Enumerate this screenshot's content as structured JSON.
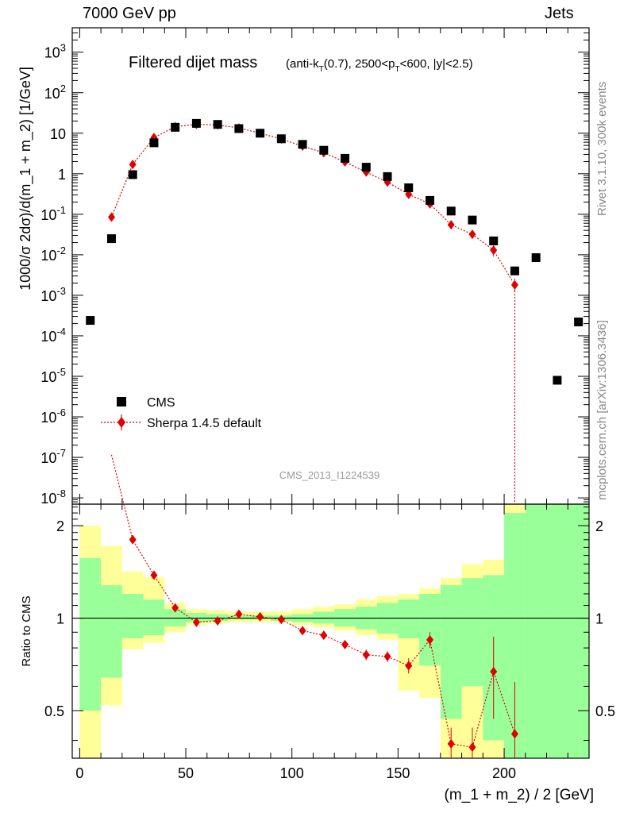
{
  "header": {
    "beam": "7000 GeV pp",
    "process": "Jets"
  },
  "side_labels": {
    "rivet": "Rivet 3.1.10,  300k events",
    "mcplots": "mcplots.cern.ch [arXiv:1306.3436]"
  },
  "colors": {
    "cms": "#000000",
    "sherpa": "#e00000",
    "band_stat": "#99ff99",
    "band_total": "#ffff99",
    "watermark": "#999999"
  },
  "chart_data": [
    {
      "type": "scatter",
      "panel": "main",
      "title": "Filtered dijet mass",
      "title_detail": {
        "prefix": "(anti-k",
        "k_sub": "T",
        "mid": "(0.7), 2500<p",
        "p_sub": "T",
        "suffix": "<600, |y|<2.5)"
      },
      "ylabel": "1000/σ 2dσ)/d(m_1 + m_2) [1/GeV]",
      "yscale": "log",
      "ylim": [
        7e-09,
        4000
      ],
      "xlim": [
        -3.5,
        240
      ],
      "y_ticks": [
        {
          "base": "10",
          "exp": "-8",
          "value": 1e-08
        },
        {
          "base": "10",
          "exp": "-7",
          "value": 1e-07
        },
        {
          "base": "10",
          "exp": "-6",
          "value": 1e-06
        },
        {
          "base": "10",
          "exp": "-5",
          "value": 1e-05
        },
        {
          "base": "10",
          "exp": "-4",
          "value": 0.0001
        },
        {
          "base": "10",
          "exp": "-3",
          "value": 0.001
        },
        {
          "base": "10",
          "exp": "-2",
          "value": 0.01
        },
        {
          "base": "10",
          "exp": "-1",
          "value": 0.1
        },
        {
          "base": "1",
          "exp": "",
          "value": 1
        },
        {
          "base": "10",
          "exp": "",
          "value": 10
        },
        {
          "base": "10",
          "exp": "2",
          "value": 100
        },
        {
          "base": "10",
          "exp": "3",
          "value": 1000
        }
      ],
      "watermark": "CMS_2013_I1224539",
      "legend": [
        {
          "label": "CMS",
          "marker": "square"
        },
        {
          "label": "Sherpa 1.4.5 default",
          "marker": "diamond"
        }
      ],
      "series": [
        {
          "name": "CMS",
          "x": [
            5,
            15,
            25,
            35,
            45,
            55,
            65,
            75,
            85,
            95,
            105,
            115,
            125,
            135,
            145,
            155,
            165,
            175,
            185,
            195,
            205,
            215,
            225,
            235
          ],
          "y": [
            0.00024,
            0.025,
            0.95,
            5.8,
            14,
            17.5,
            16.5,
            13,
            10,
            7.3,
            5.3,
            3.8,
            2.4,
            1.45,
            0.85,
            0.45,
            0.22,
            0.12,
            0.072,
            0.022,
            0.004,
            0.0085,
            8e-06,
            0.00022
          ]
        },
        {
          "name": "Sherpa 1.4.5 default",
          "x": [
            15,
            25,
            35,
            45,
            55,
            65,
            75,
            85,
            95,
            105,
            115,
            125,
            135,
            145,
            155,
            165,
            175,
            185,
            195,
            205
          ],
          "y": [
            0.085,
            1.7,
            7.8,
            14.5,
            16.5,
            16,
            13.5,
            10,
            7.2,
            4.8,
            3.3,
            1.95,
            1.1,
            0.62,
            0.31,
            0.18,
            0.055,
            0.032,
            0.013,
            0.0018
          ],
          "yerr_low": [
            0.075,
            1.6,
            7.5,
            14.2,
            16.2,
            15.7,
            13.2,
            9.8,
            7.0,
            4.6,
            3.2,
            1.85,
            1.03,
            0.56,
            0.27,
            0.15,
            0.045,
            0.025,
            0.009,
            0.0012
          ],
          "yerr_high": [
            0.095,
            1.8,
            8.1,
            14.8,
            16.8,
            16.3,
            13.8,
            10.2,
            7.4,
            5.0,
            3.4,
            2.05,
            1.17,
            0.68,
            0.35,
            0.21,
            0.065,
            0.039,
            0.018,
            0.0026
          ]
        }
      ]
    },
    {
      "type": "line",
      "panel": "ratio",
      "ylabel": "Ratio to CMS",
      "xlabel": "(m_1 + m_2) / 2 [GeV]",
      "ylim": [
        0.35,
        2.35
      ],
      "xlim": [
        -3.5,
        240
      ],
      "x_ticks": [
        "0",
        "50",
        "100",
        "150",
        "200"
      ],
      "x_tick_values": [
        0,
        50,
        100,
        150,
        200
      ],
      "y_ticks": [
        "0.5",
        "1",
        "2"
      ],
      "y_tick_values": [
        0.5,
        1,
        2
      ],
      "reference": 1,
      "bins": [
        0,
        10,
        20,
        30,
        40,
        50,
        60,
        70,
        80,
        90,
        100,
        110,
        120,
        130,
        140,
        150,
        160,
        170,
        180,
        190,
        200,
        210,
        220,
        230,
        240
      ],
      "band_total": {
        "low": [
          0.35,
          0.52,
          0.79,
          0.83,
          0.9,
          0.95,
          0.96,
          0.97,
          0.97,
          0.97,
          0.95,
          0.93,
          0.91,
          0.88,
          0.85,
          0.58,
          0.55,
          0.35,
          0.35,
          0.35,
          0.35,
          0.35,
          0.35,
          0.35
        ],
        "high": [
          2.0,
          1.72,
          1.42,
          1.36,
          1.12,
          1.07,
          1.06,
          1.05,
          1.05,
          1.05,
          1.07,
          1.09,
          1.11,
          1.15,
          1.18,
          1.2,
          1.25,
          1.35,
          1.5,
          1.55,
          2.35,
          2.35,
          1.7,
          2.35
        ]
      },
      "band_stat": {
        "low": [
          0.5,
          0.64,
          0.86,
          0.88,
          0.94,
          0.97,
          0.98,
          0.99,
          0.99,
          0.98,
          0.97,
          0.96,
          0.94,
          0.92,
          0.89,
          0.86,
          0.7,
          0.47,
          0.6,
          0.4,
          0.35,
          0.35,
          0.35,
          0.35
        ],
        "high": [
          1.57,
          1.28,
          1.2,
          1.15,
          1.07,
          1.04,
          1.03,
          1.02,
          1.02,
          1.02,
          1.03,
          1.05,
          1.07,
          1.09,
          1.12,
          1.15,
          1.2,
          1.28,
          1.35,
          1.38,
          2.2,
          2.35,
          2.35,
          2.35
        ]
      },
      "ratio_points": {
        "x": [
          15,
          25,
          35,
          45,
          55,
          65,
          75,
          85,
          95,
          105,
          115,
          125,
          135,
          145,
          155,
          165,
          175,
          185,
          195,
          205
        ],
        "y": [
          3.4,
          1.8,
          1.38,
          1.08,
          0.97,
          0.98,
          1.03,
          1.01,
          0.99,
          0.91,
          0.88,
          0.82,
          0.76,
          0.75,
          0.7,
          0.85,
          0.39,
          0.38,
          0.67,
          0.42
        ],
        "err": [
          0.2,
          0.05,
          0.03,
          0.02,
          0.015,
          0.015,
          0.015,
          0.015,
          0.02,
          0.02,
          0.02,
          0.02,
          0.03,
          0.03,
          0.04,
          0.05,
          0.05,
          0.06,
          0.2,
          0.2
        ]
      }
    }
  ]
}
